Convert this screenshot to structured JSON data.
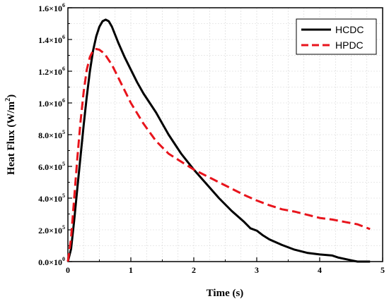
{
  "chart_data": {
    "type": "line",
    "xlabel": "Time (s)",
    "ylabel": "Heat Flux (W/m²)",
    "ylabel_parts": {
      "main": "Heat Flux (W/m",
      "sup": "2",
      "end": ")"
    },
    "xlim": [
      0,
      5
    ],
    "ylim": [
      0,
      1600000
    ],
    "grid": true,
    "legend_position": "top-right",
    "x_ticks": [
      {
        "value": 0,
        "label": "0"
      },
      {
        "value": 1,
        "label": "1"
      },
      {
        "value": 2,
        "label": "2"
      },
      {
        "value": 3,
        "label": "3"
      },
      {
        "value": 4,
        "label": "4"
      },
      {
        "value": 5,
        "label": "5"
      }
    ],
    "y_ticks": [
      {
        "value": 0,
        "mantissa": "0.0×10",
        "exp": "0"
      },
      {
        "value": 200000,
        "mantissa": "2.0×10",
        "exp": "5"
      },
      {
        "value": 400000,
        "mantissa": "4.0×10",
        "exp": "5"
      },
      {
        "value": 600000,
        "mantissa": "6.0×10",
        "exp": "5"
      },
      {
        "value": 800000,
        "mantissa": "8.0×10",
        "exp": "5"
      },
      {
        "value": 1000000,
        "mantissa": "1.0×10",
        "exp": "6"
      },
      {
        "value": 1200000,
        "mantissa": "1.2×10",
        "exp": "6"
      },
      {
        "value": 1400000,
        "mantissa": "1.4×10",
        "exp": "6"
      },
      {
        "value": 1600000,
        "mantissa": "1.6×10",
        "exp": "6"
      }
    ],
    "series": [
      {
        "name": "HCDC",
        "color": "#000000",
        "dash": "solid",
        "x": [
          0,
          0.05,
          0.1,
          0.15,
          0.2,
          0.25,
          0.3,
          0.35,
          0.4,
          0.45,
          0.5,
          0.55,
          0.6,
          0.65,
          0.7,
          0.8,
          0.9,
          1.0,
          1.1,
          1.2,
          1.3,
          1.4,
          1.5,
          1.6,
          1.7,
          1.8,
          1.9,
          2.0,
          2.2,
          2.4,
          2.6,
          2.8,
          2.9,
          3.0,
          3.1,
          3.2,
          3.4,
          3.6,
          3.8,
          4.0,
          4.2,
          4.3,
          4.5,
          4.6,
          4.7,
          4.8
        ],
        "y": [
          0,
          80000,
          260000,
          460000,
          660000,
          860000,
          1040000,
          1200000,
          1330000,
          1420000,
          1480000,
          1515000,
          1525000,
          1515000,
          1480000,
          1380000,
          1290000,
          1210000,
          1130000,
          1060000,
          1000000,
          940000,
          870000,
          800000,
          740000,
          680000,
          630000,
          580000,
          490000,
          400000,
          320000,
          250000,
          210000,
          195000,
          165000,
          140000,
          105000,
          75000,
          55000,
          45000,
          38000,
          25000,
          8000,
          0,
          0,
          0
        ]
      },
      {
        "name": "HPDC",
        "color": "#e8141c",
        "dash": "dashed",
        "x": [
          0,
          0.05,
          0.1,
          0.15,
          0.2,
          0.25,
          0.3,
          0.35,
          0.4,
          0.45,
          0.5,
          0.55,
          0.6,
          0.65,
          0.7,
          0.8,
          0.9,
          1.0,
          1.2,
          1.4,
          1.6,
          1.8,
          2.0,
          2.2,
          2.4,
          2.6,
          2.8,
          3.0,
          3.2,
          3.4,
          3.6,
          3.8,
          4.0,
          4.2,
          4.4,
          4.6,
          4.8
        ],
        "y": [
          0,
          150000,
          400000,
          650000,
          880000,
          1070000,
          1210000,
          1290000,
          1330000,
          1340000,
          1335000,
          1320000,
          1300000,
          1270000,
          1240000,
          1160000,
          1080000,
          1000000,
          870000,
          760000,
          680000,
          630000,
          580000,
          540000,
          500000,
          460000,
          420000,
          385000,
          355000,
          330000,
          315000,
          295000,
          275000,
          265000,
          250000,
          235000,
          205000
        ]
      }
    ]
  }
}
